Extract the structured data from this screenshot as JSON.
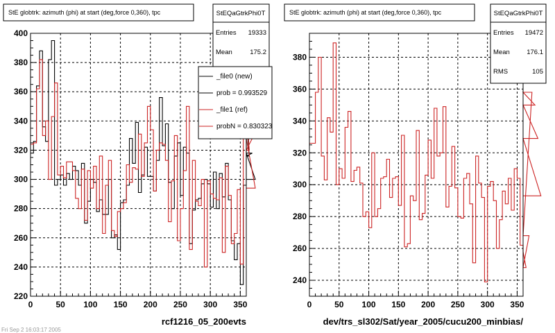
{
  "colors": {
    "new": "#000000",
    "ref": "#cc2222",
    "grid": "#000000",
    "background": "#ffffff"
  },
  "footer": {
    "text": "Fri Sep 2 16:03:17 2005"
  },
  "panels": [
    {
      "title": "StE globtrk: azimuth (phi) at start (deg,force 0,360), tpc",
      "xlabel": "rcf1216_05_200evts",
      "stats": {
        "name": "StEQaGtrkPhi0T",
        "rows": [
          {
            "label": "Entries",
            "value": "19333"
          },
          {
            "label": "Mean",
            "value": "175.2"
          }
        ]
      },
      "legend": [
        {
          "label": "_file0 (new)",
          "series": "new"
        },
        {
          "label": "prob = 0.993529",
          "series": "new"
        },
        {
          "label": "_file1 (ref)",
          "series": "ref"
        },
        {
          "label": "probN = 0.830323",
          "series": "ref"
        }
      ]
    },
    {
      "title": "StE globtrk: azimuth (phi) at start (deg,force 0,360), tpc",
      "xlabel": "dev/trs_sl302/Sat/year_2005/cucu200_minbias/",
      "stats": {
        "name": "StEQaGtrkPhi0T",
        "rows": [
          {
            "label": "Entries",
            "value": "19472"
          },
          {
            "label": "Mean",
            "value": "176.1"
          },
          {
            "label": "RMS",
            "value": "105"
          }
        ]
      },
      "legend": []
    }
  ],
  "chart_data": [
    {
      "type": "step",
      "xlim": [
        0,
        360
      ],
      "ylim": [
        220,
        400
      ],
      "xticks": [
        0,
        50,
        100,
        150,
        200,
        250,
        300,
        350
      ],
      "yticks": [
        220,
        240,
        260,
        280,
        300,
        320,
        340,
        360,
        380,
        400
      ],
      "grid": true,
      "bin_width": 5,
      "series": [
        {
          "name": "_file0 (new)",
          "color": "#000000",
          "values": [
            318,
            326,
            364,
            388,
            336,
            326,
            382,
            395,
            296,
            300,
            303,
            296,
            304,
            300,
            309,
            306,
            296,
            311,
            270,
            285,
            300,
            298,
            278,
            286,
            276,
            276,
            300,
            260,
            262,
            252,
            284,
            286,
            296,
            328,
            311,
            339,
            291,
            303,
            322,
            302,
            302,
            292,
            313,
            356,
            323,
            338,
            298,
            280,
            316,
            325,
            289,
            322,
            318,
            256,
            279,
            286,
            287,
            297,
            300,
            297,
            281,
            305,
            280,
            304,
            288,
            311,
            286,
            258,
            245,
            256,
            228,
            296,
            342,
            316,
            318,
            300
          ]
        },
        {
          "name": "_file1 (ref)",
          "color": "#cc2222",
          "values": [
            324,
            325,
            362,
            382,
            330,
            340,
            300,
            343,
            366,
            303,
            309,
            301,
            312,
            312,
            306,
            287,
            280,
            307,
            272,
            306,
            294,
            309,
            280,
            316,
            263,
            296,
            313,
            265,
            261,
            278,
            280,
            284,
            310,
            298,
            308,
            307,
            331,
            302,
            325,
            350,
            334,
            292,
            320,
            325,
            324,
            313,
            271,
            299,
            330,
            258,
            280,
            306,
            350,
            252,
            313,
            285,
            282,
            300,
            240,
            299,
            290,
            287,
            286,
            301,
            250,
            309,
            289,
            256,
            263,
            293,
            242,
            356,
            350,
            320,
            328,
            294
          ]
        }
      ]
    },
    {
      "type": "step",
      "xlim": [
        0,
        360
      ],
      "ylim": [
        230,
        395
      ],
      "xticks": [
        0,
        50,
        100,
        150,
        200,
        250,
        300,
        350
      ],
      "yticks": [
        240,
        260,
        280,
        300,
        320,
        340,
        360,
        380
      ],
      "grid": true,
      "bin_width": 5,
      "series": [
        {
          "name": "_file1 (ref)",
          "color": "#cc2222",
          "values": [
            326,
            326,
            358,
            380,
            318,
            303,
            342,
            333,
            389,
            300,
            310,
            304,
            336,
            346,
            302,
            309,
            311,
            301,
            280,
            283,
            273,
            320,
            280,
            285,
            304,
            305,
            316,
            292,
            304,
            305,
            287,
            331,
            261,
            263,
            293,
            290,
            334,
            278,
            282,
            306,
            328,
            304,
            348,
            318,
            320,
            349,
            286,
            299,
            324,
            298,
            280,
            279,
            304,
            307,
            288,
            251,
            318,
            301,
            292,
            239,
            299,
            302,
            290,
            260,
            278,
            296,
            288,
            304,
            284,
            310,
            304,
            262,
            258,
            248,
            268,
            358,
            350,
            329,
            293
          ]
        }
      ]
    }
  ]
}
